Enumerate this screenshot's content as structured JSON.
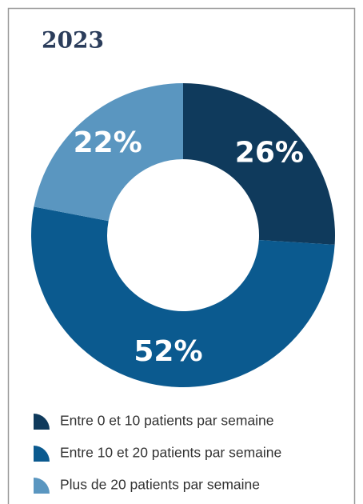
{
  "chart_data": {
    "type": "donut",
    "title": "2023",
    "categories": [
      "Entre 0 et 10 patients par semaine",
      "Entre 10 et 20 patients par semaine",
      "Plus de 20 patients par semaine"
    ],
    "values": [
      26,
      52,
      22
    ],
    "value_labels": [
      "26%",
      "52%",
      "22%"
    ],
    "colors": [
      "#0f3a5c",
      "#0b5a8f",
      "#5a96c0"
    ],
    "legend": "bottom"
  }
}
